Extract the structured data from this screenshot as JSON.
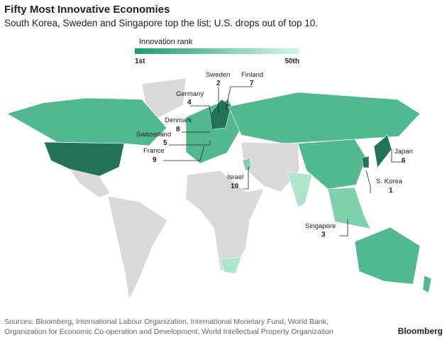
{
  "title": "Fifty Most Innovative Economies",
  "subtitle": "South Korea, Sweden and Singapore top the list; U.S. drops out of top 10.",
  "legend": {
    "title": "Innovation rank",
    "low": "1st",
    "high": "50th"
  },
  "labels": [
    {
      "name": "Sweden",
      "rank": 2
    },
    {
      "name": "Finland",
      "rank": 7
    },
    {
      "name": "Germany",
      "rank": 4
    },
    {
      "name": "Denmark",
      "rank": 8
    },
    {
      "name": "Switzerland",
      "rank": 5
    },
    {
      "name": "France",
      "rank": 9
    },
    {
      "name": "Israel",
      "rank": 10
    },
    {
      "name": "Japan",
      "rank": 6
    },
    {
      "name": "S. Korea",
      "rank": 1
    },
    {
      "name": "Singapore",
      "rank": 3
    }
  ],
  "sources": [
    "Sources: Bloomberg, International Labour Organization, International Monetary Fund, World Bank,",
    "Organization for Economic Co-operation and Development, World Intellectual Property Organization"
  ],
  "brand": "Bloomberg"
}
